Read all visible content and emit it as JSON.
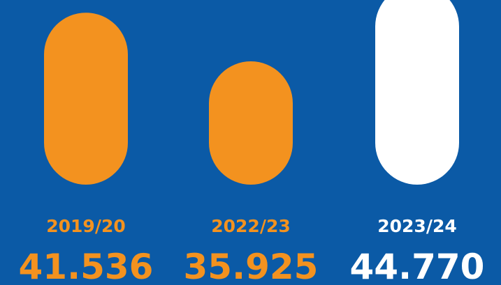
{
  "chart_data": {
    "type": "bar",
    "categories": [
      "2019/20",
      "2022/23",
      "2023/24"
    ],
    "values": [
      41536,
      35925,
      44770
    ],
    "value_labels": [
      "41.536",
      "35.925",
      "44.770"
    ],
    "colors": [
      "#f3921f",
      "#f3921f",
      "#ffffff"
    ],
    "ylim": [
      21700,
      43000
    ]
  }
}
